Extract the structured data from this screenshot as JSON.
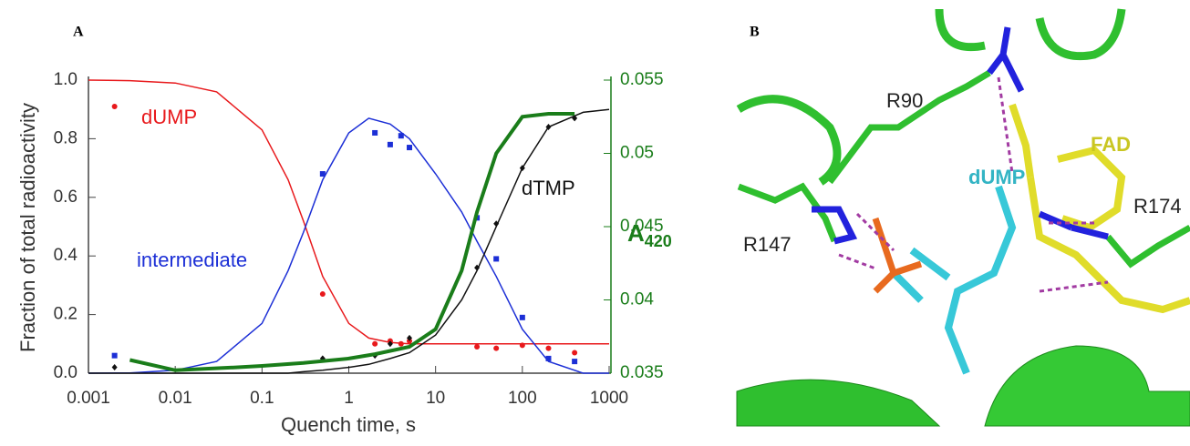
{
  "chart_data": {
    "type": "line",
    "panel_label": "A",
    "xlabel": "Quench time, s",
    "ylabel": "Fraction of total radioactivity",
    "y2_label": {
      "main": "A",
      "subscript": "420"
    },
    "xscale": "log",
    "xlim": [
      0.001,
      1000
    ],
    "xticks": [
      0.001,
      0.01,
      0.1,
      1,
      10,
      100,
      1000
    ],
    "ylim": [
      0,
      1.0
    ],
    "yticks": [
      {
        "value": 0,
        "label": "0.0"
      },
      0.2,
      0.4,
      0.6,
      0.8,
      {
        "value": 1,
        "label": "1.0"
      }
    ],
    "y2lim": [
      0.035,
      0.055
    ],
    "y2ticks": [
      0.035,
      0.04,
      0.045,
      0.05,
      0.055
    ],
    "series": [
      {
        "name": "dUMP",
        "color": "#e8191c",
        "marker": "circle",
        "x": [
          0.002,
          0.5,
          2,
          3,
          4,
          5,
          30,
          50,
          100,
          200,
          400
        ],
        "values": [
          0.91,
          0.27,
          0.1,
          0.11,
          0.1,
          0.11,
          0.09,
          0.085,
          0.095,
          0.085,
          0.07
        ],
        "fit": {
          "x": [
            0.001,
            0.003,
            0.01,
            0.03,
            0.1,
            0.2,
            0.3,
            0.5,
            1,
            1.7,
            3,
            5,
            10,
            20,
            30,
            50,
            100,
            200,
            500,
            1000
          ],
          "values": [
            1.0,
            0.998,
            0.99,
            0.96,
            0.83,
            0.66,
            0.52,
            0.33,
            0.17,
            0.12,
            0.105,
            0.1,
            0.1,
            0.1,
            0.1,
            0.1,
            0.1,
            0.1,
            0.1,
            0.1
          ]
        }
      },
      {
        "name": "intermediate",
        "color": "#1c2fd6",
        "marker": "square",
        "x": [
          0.002,
          0.5,
          2,
          3,
          4,
          5,
          30,
          50,
          100,
          200,
          400
        ],
        "values": [
          0.06,
          0.68,
          0.82,
          0.78,
          0.81,
          0.77,
          0.53,
          0.39,
          0.19,
          0.05,
          0.04
        ],
        "fit": {
          "x": [
            0.001,
            0.003,
            0.01,
            0.03,
            0.1,
            0.2,
            0.3,
            0.5,
            1,
            1.7,
            3,
            5,
            10,
            20,
            30,
            50,
            100,
            200,
            500,
            1000
          ],
          "values": [
            0,
            0.001,
            0.01,
            0.04,
            0.17,
            0.35,
            0.48,
            0.66,
            0.82,
            0.87,
            0.85,
            0.8,
            0.68,
            0.55,
            0.45,
            0.33,
            0.15,
            0.04,
            0,
            0
          ]
        }
      },
      {
        "name": "dTMP",
        "color": "#111111",
        "marker": "diamond",
        "x": [
          0.002,
          0.5,
          2,
          3,
          5,
          30,
          50,
          100,
          200,
          400
        ],
        "values": [
          0.02,
          0.05,
          0.06,
          0.1,
          0.12,
          0.36,
          0.51,
          0.7,
          0.84,
          0.87
        ],
        "fit": {
          "x": [
            0.001,
            0.003,
            0.01,
            0.03,
            0.1,
            0.2,
            0.3,
            0.5,
            1,
            1.7,
            3,
            5,
            10,
            20,
            30,
            50,
            100,
            200,
            500,
            1000
          ],
          "values": [
            0,
            0,
            0,
            0,
            0,
            0,
            0.005,
            0.01,
            0.02,
            0.03,
            0.05,
            0.07,
            0.13,
            0.25,
            0.35,
            0.5,
            0.7,
            0.84,
            0.89,
            0.9
          ]
        }
      },
      {
        "color": "#1a7d1a",
        "axis": "y2",
        "x": [
          0.003,
          0.01,
          0.05,
          0.1,
          0.3,
          1,
          2,
          5,
          10,
          20,
          30,
          50,
          100,
          200,
          400
        ],
        "values": [
          0.0359,
          0.0352,
          0.0354,
          0.0355,
          0.0357,
          0.036,
          0.0363,
          0.0368,
          0.038,
          0.042,
          0.046,
          0.05,
          0.0525,
          0.0527,
          0.0527
        ]
      }
    ]
  },
  "panel_b": {
    "label": "B",
    "labels": {
      "r90": "R90",
      "fad": "FAD",
      "dump": "dUMP",
      "r174": "R174",
      "r147": "R147"
    }
  }
}
